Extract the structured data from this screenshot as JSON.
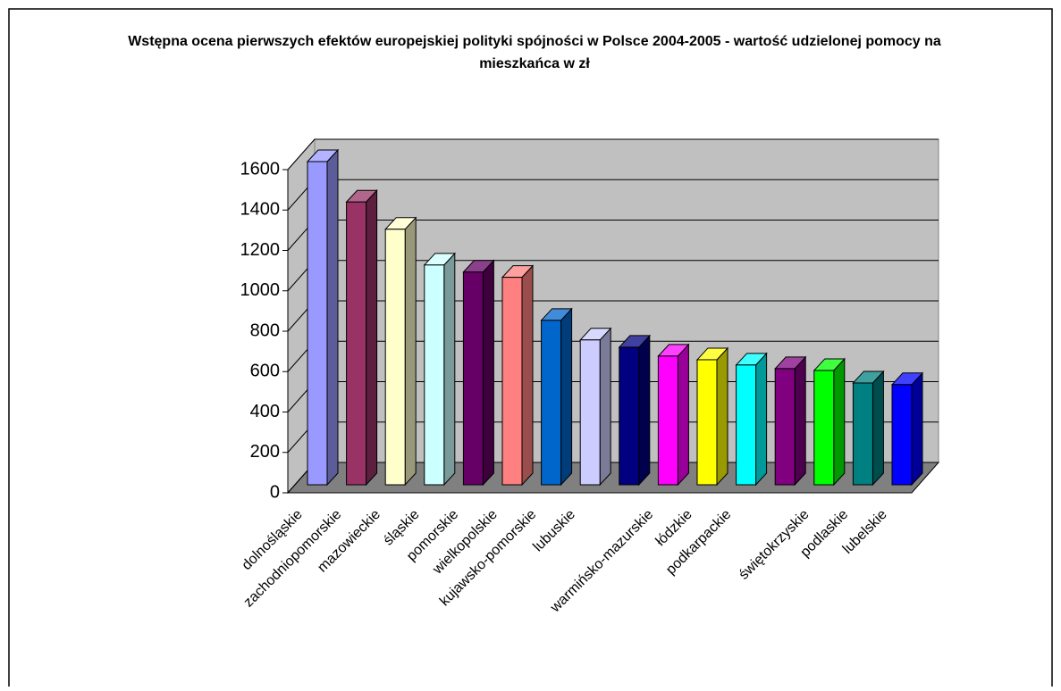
{
  "chart_data": {
    "type": "bar3d",
    "title": "Wstępna ocena pierwszych efektów europejskiej polityki spójności w Polsce 2004-2005 - wartość udzielonej pomocy na mieszkańca w zł",
    "categories": [
      "dolnośląskie",
      "zachodniopomorskie",
      "mazowieckie",
      "śląskie",
      "pomorskie",
      "wielkopolskie",
      "kujawsko-pomorskie",
      "lubuskie",
      null,
      "warmińsko-mazurskie",
      "łódzkie",
      "podkarpackie",
      null,
      "świętokrzyskie",
      "podlaskie",
      "lubelskie"
    ],
    "values": [
      1600,
      1400,
      1265,
      1088,
      1053,
      1027,
      814,
      717,
      681,
      637,
      619,
      593,
      575,
      566,
      504,
      496
    ],
    "colors": [
      "#9999ff",
      "#993366",
      "#ffffcc",
      "#ccffff",
      "#660066",
      "#ff8080",
      "#0066cc",
      "#ccccff",
      "#000080",
      "#ff00ff",
      "#ffff00",
      "#00ffff",
      "#800080",
      "#00ff00",
      "#008080",
      "#0000ff"
    ],
    "ylim": [
      0,
      1600
    ],
    "yticks": [
      0,
      200,
      400,
      600,
      800,
      1000,
      1200,
      1400,
      1600
    ],
    "grid": true
  }
}
